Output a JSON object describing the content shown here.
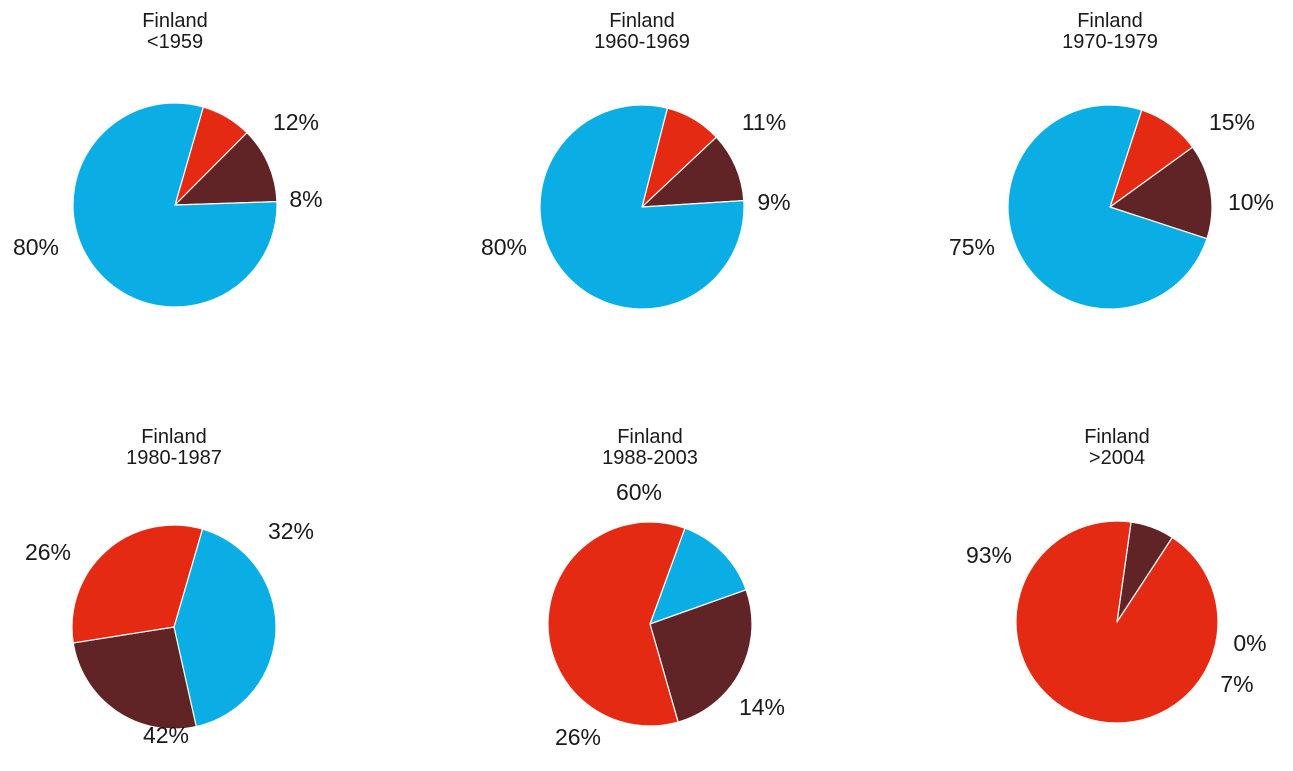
{
  "colors": {
    "blue": "#0aaee4",
    "maroon": "#612426",
    "red": "#e42a12"
  },
  "chart_data": [
    {
      "type": "pie",
      "title": "Finland",
      "subtitle": "<1959",
      "slices": [
        {
          "value": 80,
          "label": "80%",
          "color": "#0aaee4"
        },
        {
          "value": 12,
          "label": "12%",
          "color": "#612426"
        },
        {
          "value": 8,
          "label": "8%",
          "color": "#e42a12"
        }
      ]
    },
    {
      "type": "pie",
      "title": "Finland",
      "subtitle": "1960-1969",
      "slices": [
        {
          "value": 80,
          "label": "80%",
          "color": "#0aaee4"
        },
        {
          "value": 11,
          "label": "11%",
          "color": "#612426"
        },
        {
          "value": 9,
          "label": "9%",
          "color": "#e42a12"
        }
      ]
    },
    {
      "type": "pie",
      "title": "Finland",
      "subtitle": "1970-1979",
      "slices": [
        {
          "value": 75,
          "label": "75%",
          "color": "#0aaee4"
        },
        {
          "value": 15,
          "label": "15%",
          "color": "#612426"
        },
        {
          "value": 10,
          "label": "10%",
          "color": "#e42a12"
        }
      ]
    },
    {
      "type": "pie",
      "title": "Finland",
      "subtitle": "1980-1987",
      "slices": [
        {
          "value": 42,
          "label": "42%",
          "color": "#0aaee4"
        },
        {
          "value": 26,
          "label": "26%",
          "color": "#612426"
        },
        {
          "value": 32,
          "label": "32%",
          "color": "#e42a12"
        }
      ]
    },
    {
      "type": "pie",
      "title": "Finland",
      "subtitle": "1988-2003",
      "slices": [
        {
          "value": 14,
          "label": "14%",
          "color": "#0aaee4"
        },
        {
          "value": 26,
          "label": "26%",
          "color": "#612426"
        },
        {
          "value": 60,
          "label": "60%",
          "color": "#e42a12"
        }
      ]
    },
    {
      "type": "pie",
      "title": "Finland",
      "subtitle": ">2004",
      "slices": [
        {
          "value": 0,
          "label": "0%",
          "color": "#0aaee4"
        },
        {
          "value": 7,
          "label": "7%",
          "color": "#612426"
        },
        {
          "value": 93,
          "label": "93%",
          "color": "#e42a12"
        }
      ]
    }
  ]
}
